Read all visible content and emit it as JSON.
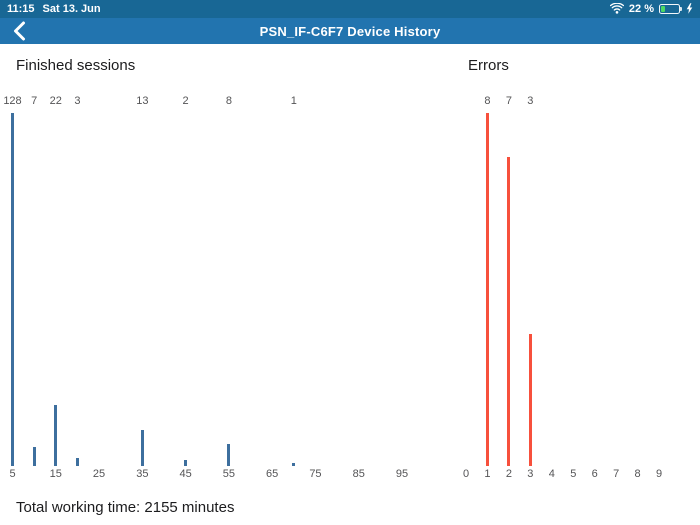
{
  "status_bar": {
    "time": "11:15",
    "date": "Sat 13. Jun",
    "battery_label": "22 %",
    "battery_level_percent": 22,
    "battery_fill_color": "#4cd964",
    "wifi_icon": "wifi-icon",
    "battery_icon": "battery-icon",
    "charging_icon": "charging-bolt-icon"
  },
  "nav_bar": {
    "title": "PSN_IF-C6F7 Device History",
    "back_icon": "chevron-left-icon"
  },
  "colors": {
    "status_bar_bg": "#186795",
    "nav_bar_bg": "#2274af",
    "sessions_bar": "#3d6f9e",
    "errors_bar": "#f7503c",
    "label_text": "#545456"
  },
  "footer": {
    "total_working_time": "Total working time: 2155 minutes"
  },
  "chart_data": [
    {
      "type": "bar",
      "title": "Finished sessions",
      "x": [
        5,
        10,
        15,
        20,
        35,
        45,
        55,
        70
      ],
      "values": [
        128,
        7,
        22,
        3,
        13,
        2,
        8,
        1
      ],
      "xticks": [
        5,
        15,
        25,
        35,
        45,
        55,
        65,
        75,
        85,
        95
      ],
      "xlim": [
        0,
        100
      ],
      "ylim": [
        0,
        128
      ],
      "bar_color": "#3d6f9e",
      "data_labels_shown": true,
      "grid": false,
      "legend": false,
      "xlabel": "",
      "ylabel": ""
    },
    {
      "type": "bar",
      "title": "Errors",
      "x": [
        1,
        2,
        3
      ],
      "values": [
        8,
        7,
        3
      ],
      "xticks": [
        0,
        1,
        2,
        3,
        4,
        5,
        6,
        7,
        8,
        9
      ],
      "xlim": [
        0,
        9
      ],
      "ylim": [
        0,
        8
      ],
      "bar_color": "#f7503c",
      "data_labels_shown": true,
      "grid": false,
      "legend": false,
      "xlabel": "",
      "ylabel": ""
    }
  ]
}
